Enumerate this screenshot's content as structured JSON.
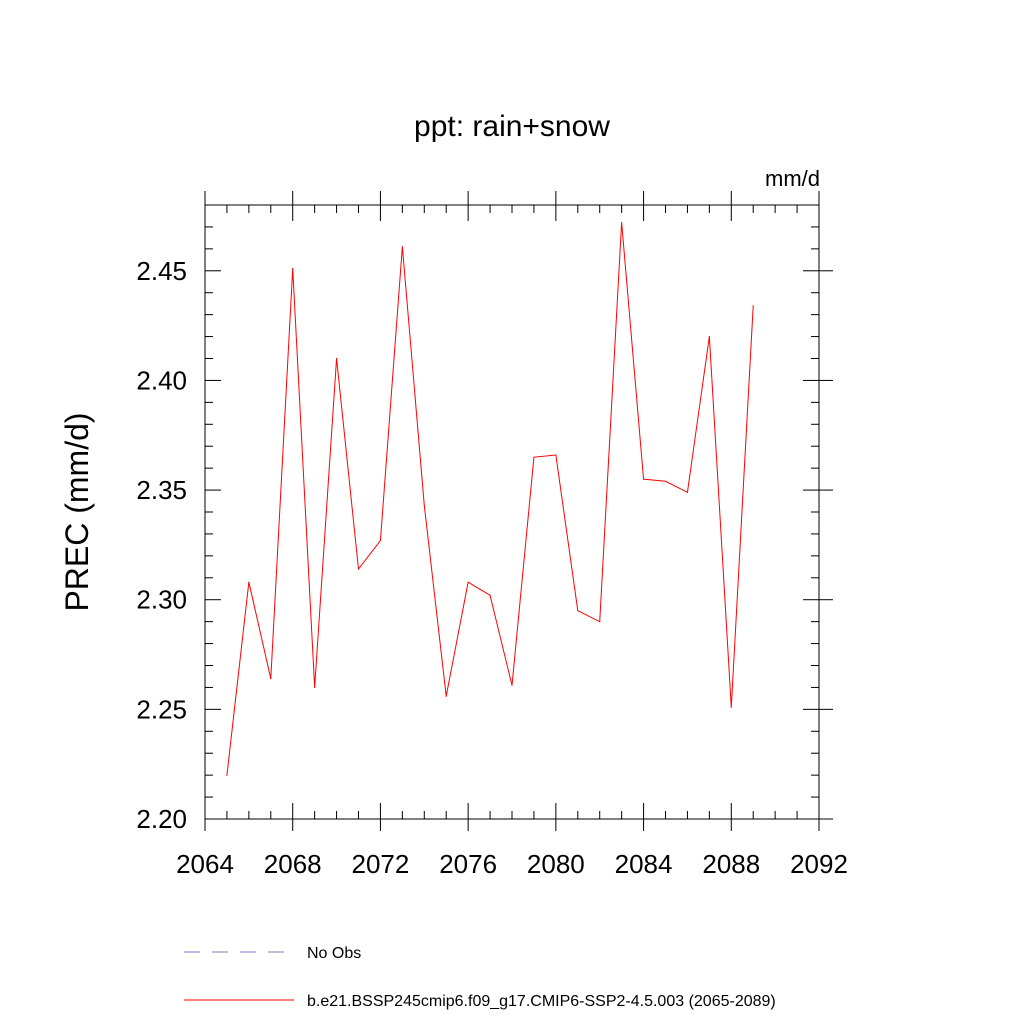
{
  "chart_data": {
    "type": "line",
    "title": "ppt: rain+snow",
    "units_label": "mm/d",
    "ylabel": "PREC  (mm/d)",
    "xlabel": "",
    "xlim": [
      2064,
      2092
    ],
    "ylim": [
      2.2,
      2.48
    ],
    "x_ticks": [
      2064,
      2068,
      2072,
      2076,
      2080,
      2084,
      2088,
      2092
    ],
    "y_ticks": [
      2.2,
      2.25,
      2.3,
      2.35,
      2.4,
      2.45
    ],
    "x_tick_labels": [
      "2064",
      "2068",
      "2072",
      "2076",
      "2080",
      "2084",
      "2088",
      "2092"
    ],
    "y_tick_labels": [
      "2.20",
      "2.25",
      "2.30",
      "2.35",
      "2.40",
      "2.45"
    ],
    "grid": false,
    "legend_position": "bottom",
    "series": [
      {
        "name": "b.e21.BSSP245cmip6.f09_g17.CMIP6-SSP2-4.5.003 (2065-2089)",
        "color": "#ff0000",
        "x": [
          2065,
          2066,
          2067,
          2068,
          2069,
          2070,
          2071,
          2072,
          2073,
          2074,
          2075,
          2076,
          2077,
          2078,
          2079,
          2080,
          2081,
          2082,
          2083,
          2084,
          2085,
          2086,
          2087,
          2088,
          2089
        ],
        "values": [
          2.22,
          2.308,
          2.264,
          2.451,
          2.26,
          2.41,
          2.314,
          2.327,
          2.461,
          2.343,
          2.256,
          2.308,
          2.302,
          2.261,
          2.365,
          2.366,
          2.295,
          2.29,
          2.472,
          2.355,
          2.354,
          2.349,
          2.42,
          2.251,
          2.434
        ]
      }
    ],
    "legend": [
      {
        "label": "No Obs",
        "color": "#7f7fcc",
        "dashed": true
      },
      {
        "label": "b.e21.BSSP245cmip6.f09_g17.CMIP6-SSP2-4.5.003 (2065-2089)",
        "color": "#ff0000",
        "dashed": false
      }
    ]
  }
}
